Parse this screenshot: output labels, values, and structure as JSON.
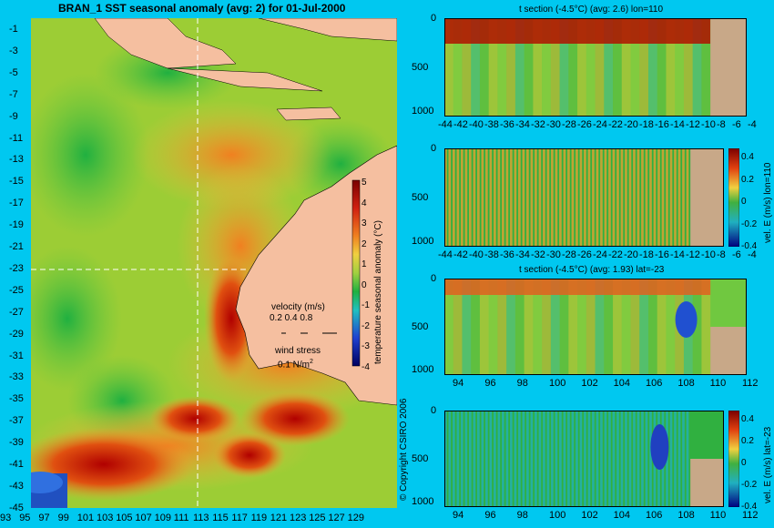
{
  "main_map": {
    "title": "BRAN_1 SST seasonal anomaly (avg: 2) for 01-Jul-2000",
    "lat_ticks": [
      "-1",
      "-3",
      "-5",
      "-7",
      "-9",
      "-11",
      "-13",
      "-15",
      "-17",
      "-19",
      "-21",
      "-23",
      "-25",
      "-27",
      "-29",
      "-31",
      "-33",
      "-35",
      "-37",
      "-39",
      "-41",
      "-43",
      "-45"
    ],
    "lon_ticks": [
      "93",
      "95",
      "97",
      "99",
      "101",
      "103",
      "105",
      "107",
      "109",
      "111",
      "113",
      "115",
      "117",
      "119",
      "121",
      "123",
      "125",
      "127",
      "129"
    ],
    "colorbar_label": "temperature seasonal anomaly (°C)",
    "colorbar_ticks": [
      "5",
      "4",
      "3",
      "2",
      "1",
      "0",
      "-1",
      "-2",
      "-3",
      "-4"
    ],
    "velocity_legend": {
      "label": "velocity (m/s)",
      "scale": "0.2 0.4 0.8"
    },
    "wind_legend": {
      "label": "wind stress",
      "scale": "0.1 N/m",
      "exponent": "2"
    },
    "section_lines": [
      "lon=110",
      "lat=-23"
    ]
  },
  "copyright": "© Copyright CSIRO 2006",
  "panels": [
    {
      "title": "t section (-4.5°C) (avg: 2.6) lon=110",
      "y_ticks": [
        "0",
        "500",
        "1000"
      ],
      "x_ticks": [
        "-44",
        "-42",
        "-40",
        "-38",
        "-36",
        "-34",
        "-32",
        "-30",
        "-28",
        "-26",
        "-24",
        "-22",
        "-20",
        "-18",
        "-16",
        "-14",
        "-12",
        "-10",
        "-8",
        "-6",
        "-4"
      ],
      "colorbar": false
    },
    {
      "title": "",
      "y_ticks": [
        "0",
        "500",
        "1000"
      ],
      "x_ticks": [
        "-44",
        "-42",
        "-40",
        "-38",
        "-36",
        "-34",
        "-32",
        "-30",
        "-28",
        "-26",
        "-24",
        "-22",
        "-20",
        "-18",
        "-16",
        "-14",
        "-12",
        "-10",
        "-8",
        "-6",
        "-4"
      ],
      "colorbar": true,
      "colorbar_label": "vel. E (m/s) lon=110",
      "colorbar_ticks": [
        "0.4",
        "0.2",
        "0",
        "-0.2",
        "-0.4"
      ]
    },
    {
      "title": "t section (-4.5°C) (avg: 1.93) lat=-23",
      "y_ticks": [
        "0",
        "500",
        "1000"
      ],
      "x_ticks": [
        "94",
        "96",
        "98",
        "100",
        "102",
        "104",
        "106",
        "108",
        "110",
        "112"
      ],
      "colorbar": false
    },
    {
      "title": "",
      "y_ticks": [
        "0",
        "500",
        "1000"
      ],
      "x_ticks": [
        "94",
        "96",
        "98",
        "100",
        "102",
        "104",
        "106",
        "108",
        "110",
        "112"
      ],
      "colorbar": true,
      "colorbar_label": "vel. E (m/s) lat=-23",
      "colorbar_ticks": [
        "0.4",
        "0.2",
        "0",
        "-0.2",
        "-0.4"
      ]
    }
  ]
}
